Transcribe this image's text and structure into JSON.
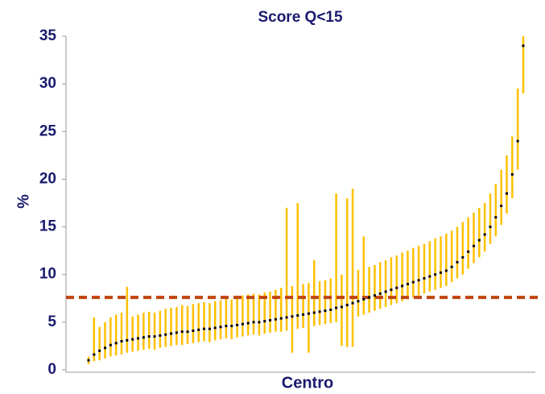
{
  "chart_data": {
    "type": "caterpillar",
    "title": "Score Q<15",
    "xlabel": "Centro",
    "ylabel": "%",
    "ylim": [
      0,
      35
    ],
    "yticks": [
      0,
      5,
      10,
      15,
      20,
      25,
      30,
      35
    ],
    "reference_line": 7.6,
    "reference_color": "#c0440f",
    "color": "#ffc000",
    "point_color": "#000000",
    "values": [
      1.0,
      1.6,
      2.0,
      2.3,
      2.6,
      2.8,
      3.0,
      3.1,
      3.2,
      3.3,
      3.4,
      3.5,
      3.5,
      3.6,
      3.7,
      3.8,
      3.9,
      4.0,
      4.0,
      4.1,
      4.2,
      4.3,
      4.3,
      4.4,
      4.5,
      4.6,
      4.6,
      4.7,
      4.8,
      4.9,
      5.0,
      5.0,
      5.1,
      5.2,
      5.3,
      5.4,
      5.5,
      5.6,
      5.7,
      5.8,
      5.9,
      6.0,
      6.1,
      6.2,
      6.3,
      6.5,
      6.6,
      6.8,
      7.0,
      7.2,
      7.4,
      7.6,
      7.8,
      8.0,
      8.2,
      8.4,
      8.6,
      8.8,
      9.0,
      9.2,
      9.4,
      9.6,
      9.8,
      10.0,
      10.2,
      10.4,
      10.8,
      11.3,
      11.8,
      12.4,
      13.0,
      13.6,
      14.2,
      15.0,
      16.0,
      17.2,
      18.5,
      20.5,
      24.0,
      34.0
    ],
    "lower": [
      0.6,
      0.9,
      1.0,
      1.2,
      1.4,
      1.5,
      1.6,
      1.8,
      1.9,
      2.0,
      2.1,
      2.2,
      2.1,
      2.3,
      2.4,
      2.5,
      2.6,
      2.6,
      2.7,
      2.8,
      2.9,
      3.0,
      2.9,
      3.1,
      3.2,
      3.3,
      3.2,
      3.4,
      3.5,
      3.6,
      3.7,
      3.6,
      3.8,
      3.9,
      4.0,
      4.0,
      4.1,
      1.8,
      4.3,
      4.4,
      1.8,
      4.6,
      4.7,
      4.8,
      4.9,
      5.0,
      2.5,
      2.4,
      2.4,
      5.6,
      5.8,
      6.0,
      6.2,
      6.4,
      6.6,
      6.8,
      7.0,
      7.2,
      7.4,
      7.6,
      7.8,
      8.0,
      8.2,
      8.4,
      8.6,
      8.8,
      9.2,
      9.6,
      10.0,
      10.6,
      11.2,
      11.8,
      12.4,
      13.2,
      14.0,
      15.2,
      16.4,
      18.0,
      21.0,
      29.0
    ],
    "upper": [
      1.4,
      5.5,
      4.5,
      5.0,
      5.5,
      5.8,
      6.0,
      8.7,
      5.6,
      5.8,
      6.0,
      6.1,
      6.0,
      6.2,
      6.4,
      6.5,
      6.6,
      6.8,
      6.7,
      6.9,
      7.0,
      7.1,
      7.0,
      7.2,
      7.3,
      7.5,
      7.4,
      7.6,
      7.8,
      7.9,
      8.0,
      7.9,
      8.1,
      8.2,
      8.4,
      8.6,
      17.0,
      8.8,
      17.5,
      9.0,
      9.1,
      11.5,
      9.3,
      9.4,
      9.6,
      18.5,
      10.0,
      18.0,
      19.0,
      10.5,
      14.0,
      10.8,
      11.0,
      11.3,
      11.5,
      11.8,
      12.0,
      12.3,
      12.5,
      12.8,
      13.0,
      13.2,
      13.5,
      13.8,
      14.0,
      14.3,
      14.6,
      15.0,
      15.5,
      16.0,
      16.5,
      17.0,
      17.5,
      18.5,
      19.5,
      21.0,
      22.5,
      24.5,
      29.5,
      35.0
    ]
  }
}
